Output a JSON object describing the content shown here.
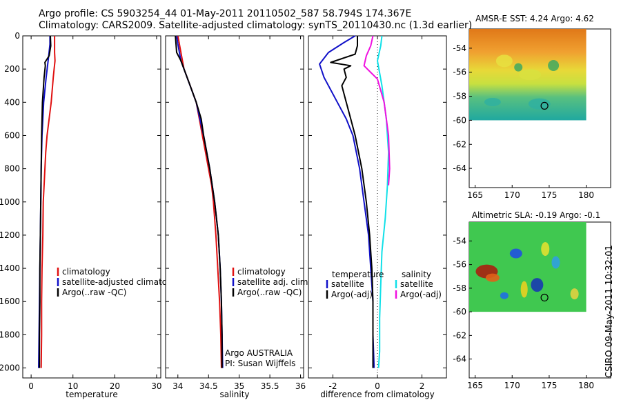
{
  "header": {
    "line1": "Argo profile: CS 5903254_44 01-May-2011 20110502_587 58.794S 174.367E",
    "line2": "Climatology: CARS2009. Satellite-adjusted climatology: synTS_20110430.nc (1.3d earlier)"
  },
  "footer": {
    "stamp": "CSIRO 09-May-2011 10:32:01"
  },
  "colors": {
    "climatology": "#e01010",
    "satellite": "#1010c8",
    "argo": "#000000",
    "satellite_cyan": "#10e0e8",
    "argo_magenta": "#f010e0"
  },
  "chart_data": [
    {
      "type": "line",
      "id": "temperature",
      "xlabel": "temperature",
      "xticks": [
        "0",
        "10",
        "20",
        "30"
      ],
      "yticks": [
        "0",
        "200",
        "400",
        "600",
        "800",
        "1000",
        "1200",
        "1400",
        "1600",
        "1800",
        "2000"
      ],
      "xlim": [
        -2,
        31
      ],
      "ylim": [
        2060,
        0
      ],
      "legend": [
        "climatology",
        "satellite-adjusted climatology",
        "Argo(..raw -QC)"
      ],
      "series": [
        {
          "name": "climatology",
          "color": "#e01010",
          "points": [
            [
              5.6,
              0
            ],
            [
              5.6,
              100
            ],
            [
              5.7,
              150
            ],
            [
              5.3,
              250
            ],
            [
              4.8,
              400
            ],
            [
              4.3,
              500
            ],
            [
              3.8,
              600
            ],
            [
              3.5,
              700
            ],
            [
              3.3,
              800
            ],
            [
              3.1,
              900
            ],
            [
              2.9,
              1000
            ],
            [
              2.8,
              1200
            ],
            [
              2.6,
              1400
            ],
            [
              2.5,
              1600
            ],
            [
              2.5,
              1800
            ],
            [
              2.4,
              2000
            ]
          ]
        },
        {
          "name": "satellite-adjusted climatology",
          "color": "#1010c8",
          "points": [
            [
              4.5,
              0
            ],
            [
              4.5,
              50
            ],
            [
              4.2,
              120
            ],
            [
              3.6,
              250
            ],
            [
              3.0,
              400
            ],
            [
              2.6,
              600
            ],
            [
              2.4,
              800
            ],
            [
              2.3,
              1000
            ],
            [
              2.2,
              1200
            ],
            [
              2.1,
              1400
            ],
            [
              2.0,
              1600
            ],
            [
              1.9,
              1800
            ],
            [
              1.8,
              2000
            ]
          ]
        },
        {
          "name": "Argo(..raw -QC)",
          "color": "#000000",
          "points": [
            [
              4.6,
              0
            ],
            [
              4.7,
              60
            ],
            [
              4.3,
              120
            ],
            [
              3.3,
              160
            ],
            [
              3.4,
              180
            ],
            [
              3.1,
              250
            ],
            [
              2.7,
              400
            ],
            [
              2.5,
              600
            ],
            [
              2.4,
              800
            ],
            [
              2.3,
              1000
            ],
            [
              2.2,
              1200
            ],
            [
              2.1,
              1400
            ],
            [
              2.1,
              1600
            ],
            [
              2.0,
              1800
            ],
            [
              2.0,
              2000
            ]
          ]
        }
      ]
    },
    {
      "type": "line",
      "id": "salinity",
      "xlabel": "salinity",
      "xticks": [
        "34",
        "34.5",
        "35",
        "35.5",
        "36"
      ],
      "yticks": [],
      "xlim": [
        33.8,
        36.05
      ],
      "ylim": [
        2060,
        0
      ],
      "legend": [
        "climatology",
        "satellite adj. clim.",
        "Argo(..raw -QC)"
      ],
      "annotations": [
        "Argo AUSTRALIA",
        "PI: Susan Wijffels"
      ],
      "series": [
        {
          "name": "climatology",
          "color": "#e01010",
          "points": [
            [
              34.0,
              0
            ],
            [
              34.05,
              100
            ],
            [
              34.1,
              200
            ],
            [
              34.2,
              300
            ],
            [
              34.3,
              400
            ],
            [
              34.35,
              500
            ],
            [
              34.4,
              600
            ],
            [
              34.45,
              700
            ],
            [
              34.5,
              800
            ],
            [
              34.55,
              900
            ],
            [
              34.58,
              1000
            ],
            [
              34.62,
              1200
            ],
            [
              34.65,
              1400
            ],
            [
              34.68,
              1600
            ],
            [
              34.7,
              1800
            ],
            [
              34.71,
              2000
            ]
          ]
        },
        {
          "name": "satellite adj. clim.",
          "color": "#1010c8",
          "points": [
            [
              33.98,
              0
            ],
            [
              34.0,
              50
            ],
            [
              34.05,
              150
            ],
            [
              34.15,
              250
            ],
            [
              34.3,
              400
            ],
            [
              34.42,
              600
            ],
            [
              34.52,
              800
            ],
            [
              34.6,
              1000
            ],
            [
              34.66,
              1200
            ],
            [
              34.69,
              1400
            ],
            [
              34.71,
              1600
            ],
            [
              34.72,
              1800
            ],
            [
              34.73,
              2000
            ]
          ]
        },
        {
          "name": "Argo(..raw -QC)",
          "color": "#000000",
          "points": [
            [
              33.96,
              0
            ],
            [
              33.97,
              50
            ],
            [
              33.98,
              100
            ],
            [
              34.05,
              150
            ],
            [
              34.1,
              200
            ],
            [
              34.2,
              300
            ],
            [
              34.3,
              400
            ],
            [
              34.38,
              500
            ],
            [
              34.42,
              600
            ],
            [
              34.52,
              800
            ],
            [
              34.6,
              1000
            ],
            [
              34.66,
              1200
            ],
            [
              34.69,
              1400
            ],
            [
              34.71,
              1600
            ],
            [
              34.72,
              1800
            ],
            [
              34.72,
              2000
            ]
          ]
        }
      ]
    },
    {
      "type": "line",
      "id": "difference",
      "xlabel": "difference from climatology",
      "xticks": [
        "-2",
        "0",
        "2"
      ],
      "yticks": [],
      "xlim": [
        -3.1,
        3.1
      ],
      "ylim": [
        2060,
        0
      ],
      "legend_left_title": "temperature",
      "legend_right_title": "salinity",
      "legend_left": [
        "satellite",
        "Argo(-adj)"
      ],
      "legend_right": [
        "satellite",
        "Argo(-adj)"
      ],
      "series": [
        {
          "name": "satellite",
          "group": "temperature",
          "color": "#1010c8",
          "points": [
            [
              -1.0,
              0
            ],
            [
              -1.5,
              40
            ],
            [
              -2.2,
              100
            ],
            [
              -2.6,
              170
            ],
            [
              -2.4,
              250
            ],
            [
              -1.8,
              400
            ],
            [
              -1.4,
              500
            ],
            [
              -1.1,
              600
            ],
            [
              -0.8,
              800
            ],
            [
              -0.6,
              1000
            ],
            [
              -0.4,
              1200
            ],
            [
              -0.3,
              1400
            ],
            [
              -0.2,
              1600
            ],
            [
              -0.2,
              1800
            ],
            [
              -0.15,
              2000
            ]
          ]
        },
        {
          "name": "Argo(-adj)",
          "group": "temperature",
          "color": "#000000",
          "points": [
            [
              -0.9,
              0
            ],
            [
              -0.9,
              60
            ],
            [
              -1.0,
              110
            ],
            [
              -2.1,
              160
            ],
            [
              -1.2,
              180
            ],
            [
              -1.5,
              200
            ],
            [
              -1.4,
              250
            ],
            [
              -1.6,
              300
            ],
            [
              -1.4,
              400
            ],
            [
              -1.2,
              500
            ],
            [
              -1.0,
              600
            ],
            [
              -0.7,
              800
            ],
            [
              -0.5,
              1000
            ],
            [
              -0.35,
              1200
            ],
            [
              -0.25,
              1400
            ],
            [
              -0.2,
              1600
            ],
            [
              -0.2,
              1800
            ],
            [
              -0.2,
              2000
            ]
          ]
        },
        {
          "name": "satellite",
          "group": "salinity",
          "color": "#10e0e8",
          "points": [
            [
              0.2,
              0
            ],
            [
              0.15,
              60
            ],
            [
              0.0,
              150
            ],
            [
              0.2,
              300
            ],
            [
              0.4,
              500
            ],
            [
              0.5,
              700
            ],
            [
              0.45,
              900
            ],
            [
              0.35,
              1100
            ],
            [
              0.2,
              1300
            ],
            [
              0.15,
              1500
            ],
            [
              0.1,
              1700
            ],
            [
              0.1,
              1900
            ],
            [
              0.05,
              2000
            ]
          ]
        },
        {
          "name": "Argo(-adj)",
          "group": "salinity",
          "color": "#f010e0",
          "points": [
            [
              -0.2,
              0
            ],
            [
              -0.3,
              60
            ],
            [
              -0.5,
              120
            ],
            [
              -0.6,
              180
            ],
            [
              -0.3,
              220
            ],
            [
              0.0,
              260
            ],
            [
              0.3,
              400
            ],
            [
              0.5,
              600
            ],
            [
              0.55,
              800
            ],
            [
              0.5,
              900
            ]
          ]
        }
      ]
    }
  ],
  "maps": [
    {
      "id": "sst",
      "title": "AMSR-E SST: 4.24 Argo: 4.62",
      "xticks": [
        "165",
        "170",
        "175",
        "180"
      ],
      "yticks": [
        "-54",
        "-56",
        "-58",
        "-60",
        "-62",
        "-64"
      ],
      "xlim": [
        164.2,
        183.3
      ],
      "ylim": [
        -65.6,
        -52.4
      ],
      "marker": [
        174.367,
        -58.794
      ]
    },
    {
      "id": "sla",
      "title": "Altimetric SLA: -0.19 Argo: -0.1",
      "xticks": [
        "165",
        "170",
        "175",
        "180"
      ],
      "yticks": [
        "-54",
        "-56",
        "-58",
        "-60",
        "-62",
        "-64"
      ],
      "xlim": [
        164.2,
        183.3
      ],
      "ylim": [
        -65.6,
        -52.4
      ],
      "marker": [
        174.367,
        -58.794
      ]
    }
  ]
}
